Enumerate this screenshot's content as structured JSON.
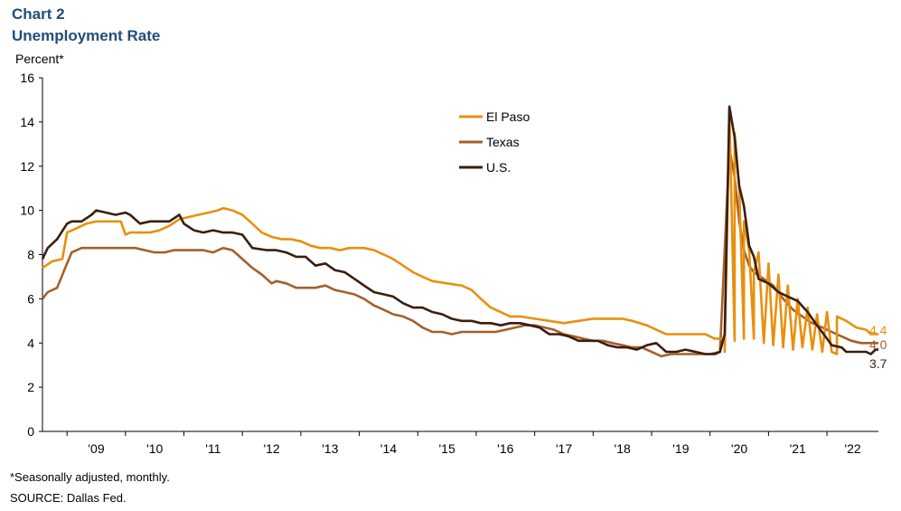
{
  "header": {
    "chart_number": "Chart 2",
    "title": "Unemployment Rate"
  },
  "footer": {
    "note": "*Seasonally adjusted, monthly.",
    "source": "SOURCE: Dallas Fed."
  },
  "colors": {
    "el_paso": "#e8900e",
    "texas": "#a5602a",
    "us": "#3a1e0e",
    "axis": "#000000"
  },
  "chart_data": {
    "type": "line",
    "title": "Unemployment Rate",
    "ylabel": "Percent*",
    "xlabel": "",
    "ylim": [
      0,
      16
    ],
    "yticks": [
      0,
      2,
      4,
      6,
      8,
      10,
      12,
      14,
      16
    ],
    "xlim": [
      2008.58,
      2022.88
    ],
    "year_ticks": [
      {
        "label": "'09",
        "year": 2009
      },
      {
        "label": "'10",
        "year": 2010
      },
      {
        "label": "'11",
        "year": 2011
      },
      {
        "label": "'12",
        "year": 2012
      },
      {
        "label": "'13",
        "year": 2013
      },
      {
        "label": "'14",
        "year": 2014
      },
      {
        "label": "'15",
        "year": 2015
      },
      {
        "label": "'16",
        "year": 2016
      },
      {
        "label": "'17",
        "year": 2017
      },
      {
        "label": "'18",
        "year": 2018
      },
      {
        "label": "'19",
        "year": 2019
      },
      {
        "label": "'20",
        "year": 2020
      },
      {
        "label": "'21",
        "year": 2021
      },
      {
        "label": "'22",
        "year": 2022
      }
    ],
    "legend_position": "top-center",
    "series": [
      {
        "name": "El Paso",
        "end_label": "4.4",
        "points": [
          [
            2008.58,
            7.4
          ],
          [
            2008.75,
            7.7
          ],
          [
            2008.92,
            7.8
          ],
          [
            2009.0,
            9.0
          ],
          [
            2009.17,
            9.2
          ],
          [
            2009.33,
            9.4
          ],
          [
            2009.5,
            9.5
          ],
          [
            2009.75,
            9.5
          ],
          [
            2009.92,
            9.5
          ],
          [
            2010.0,
            8.9
          ],
          [
            2010.08,
            9.0
          ],
          [
            2010.42,
            9.0
          ],
          [
            2010.58,
            9.1
          ],
          [
            2010.75,
            9.3
          ],
          [
            2010.92,
            9.6
          ],
          [
            2011.08,
            9.7
          ],
          [
            2011.25,
            9.8
          ],
          [
            2011.42,
            9.9
          ],
          [
            2011.58,
            10.0
          ],
          [
            2011.67,
            10.1
          ],
          [
            2011.83,
            10.0
          ],
          [
            2012.0,
            9.8
          ],
          [
            2012.17,
            9.4
          ],
          [
            2012.33,
            9.0
          ],
          [
            2012.5,
            8.8
          ],
          [
            2012.67,
            8.7
          ],
          [
            2012.83,
            8.7
          ],
          [
            2013.0,
            8.6
          ],
          [
            2013.17,
            8.4
          ],
          [
            2013.33,
            8.3
          ],
          [
            2013.5,
            8.3
          ],
          [
            2013.67,
            8.2
          ],
          [
            2013.83,
            8.3
          ],
          [
            2014.08,
            8.3
          ],
          [
            2014.25,
            8.2
          ],
          [
            2014.42,
            8.0
          ],
          [
            2014.58,
            7.8
          ],
          [
            2014.75,
            7.5
          ],
          [
            2014.92,
            7.2
          ],
          [
            2015.08,
            7.0
          ],
          [
            2015.25,
            6.8
          ],
          [
            2015.5,
            6.7
          ],
          [
            2015.75,
            6.6
          ],
          [
            2015.92,
            6.4
          ],
          [
            2016.08,
            6.0
          ],
          [
            2016.25,
            5.6
          ],
          [
            2016.42,
            5.4
          ],
          [
            2016.58,
            5.2
          ],
          [
            2016.75,
            5.2
          ],
          [
            2017.0,
            5.1
          ],
          [
            2017.25,
            5.0
          ],
          [
            2017.5,
            4.9
          ],
          [
            2017.75,
            5.0
          ],
          [
            2018.0,
            5.1
          ],
          [
            2018.25,
            5.1
          ],
          [
            2018.5,
            5.1
          ],
          [
            2018.67,
            5.0
          ],
          [
            2018.92,
            4.8
          ],
          [
            2019.08,
            4.6
          ],
          [
            2019.25,
            4.4
          ],
          [
            2019.42,
            4.4
          ],
          [
            2019.58,
            4.4
          ],
          [
            2019.75,
            4.4
          ],
          [
            2019.92,
            4.4
          ],
          [
            2020.08,
            4.2
          ],
          [
            2020.25,
            4.2
          ],
          [
            2020.42,
            4.1
          ],
          [
            2020.58,
            4.2
          ],
          [
            2020.75,
            4.2
          ],
          [
            2020.92,
            4.0
          ],
          [
            2021.08,
            3.9
          ],
          [
            2021.25,
            3.8
          ],
          [
            2021.42,
            3.7
          ],
          [
            2021.58,
            3.8
          ],
          [
            2021.75,
            3.7
          ],
          [
            2021.92,
            3.6
          ],
          [
            2022.08,
            3.6
          ],
          [
            2022.17,
            3.5
          ],
          [
            2020.25,
            3.6
          ],
          [
            2020.33,
            14.5
          ],
          [
            2020.42,
            13.5
          ],
          [
            2020.5,
            11.0
          ],
          [
            2020.58,
            9.5
          ],
          [
            2020.67,
            8.2
          ],
          [
            2020.75,
            7.2
          ],
          [
            2020.83,
            8.1
          ],
          [
            2021.0,
            7.6
          ],
          [
            2021.17,
            7.1
          ],
          [
            2021.33,
            6.6
          ],
          [
            2021.5,
            6.0
          ],
          [
            2021.67,
            5.6
          ],
          [
            2021.83,
            5.3
          ],
          [
            2022.0,
            5.4
          ],
          [
            2022.17,
            5.2
          ],
          [
            2022.33,
            5.0
          ],
          [
            2022.5,
            4.7
          ],
          [
            2022.67,
            4.6
          ],
          [
            2022.75,
            4.4
          ],
          [
            2022.88,
            4.4
          ]
        ]
      },
      {
        "name": "Texas",
        "end_label": "4.0",
        "points": [
          [
            2008.58,
            6.0
          ],
          [
            2008.67,
            6.3
          ],
          [
            2008.83,
            6.5
          ],
          [
            2009.0,
            7.6
          ],
          [
            2009.08,
            8.1
          ],
          [
            2009.25,
            8.3
          ],
          [
            2009.5,
            8.3
          ],
          [
            2009.75,
            8.3
          ],
          [
            2010.0,
            8.3
          ],
          [
            2010.17,
            8.3
          ],
          [
            2010.33,
            8.2
          ],
          [
            2010.5,
            8.1
          ],
          [
            2010.67,
            8.1
          ],
          [
            2010.83,
            8.2
          ],
          [
            2011.0,
            8.2
          ],
          [
            2011.17,
            8.2
          ],
          [
            2011.33,
            8.2
          ],
          [
            2011.5,
            8.1
          ],
          [
            2011.67,
            8.3
          ],
          [
            2011.83,
            8.2
          ],
          [
            2012.0,
            7.8
          ],
          [
            2012.17,
            7.4
          ],
          [
            2012.33,
            7.1
          ],
          [
            2012.5,
            6.7
          ],
          [
            2012.58,
            6.8
          ],
          [
            2012.75,
            6.7
          ],
          [
            2012.92,
            6.5
          ],
          [
            2013.08,
            6.5
          ],
          [
            2013.25,
            6.5
          ],
          [
            2013.42,
            6.6
          ],
          [
            2013.58,
            6.4
          ],
          [
            2013.75,
            6.3
          ],
          [
            2013.92,
            6.2
          ],
          [
            2014.08,
            6.0
          ],
          [
            2014.25,
            5.7
          ],
          [
            2014.42,
            5.5
          ],
          [
            2014.58,
            5.3
          ],
          [
            2014.75,
            5.2
          ],
          [
            2014.92,
            5.0
          ],
          [
            2015.08,
            4.7
          ],
          [
            2015.25,
            4.5
          ],
          [
            2015.42,
            4.5
          ],
          [
            2015.58,
            4.4
          ],
          [
            2015.75,
            4.5
          ],
          [
            2015.92,
            4.5
          ],
          [
            2016.17,
            4.5
          ],
          [
            2016.33,
            4.5
          ],
          [
            2016.5,
            4.6
          ],
          [
            2016.67,
            4.7
          ],
          [
            2016.83,
            4.8
          ],
          [
            2017.0,
            4.8
          ],
          [
            2017.17,
            4.7
          ],
          [
            2017.33,
            4.6
          ],
          [
            2017.5,
            4.4
          ],
          [
            2017.67,
            4.3
          ],
          [
            2017.83,
            4.2
          ],
          [
            2018.0,
            4.1
          ],
          [
            2018.17,
            4.1
          ],
          [
            2018.33,
            4.0
          ],
          [
            2018.5,
            3.9
          ],
          [
            2018.67,
            3.8
          ],
          [
            2018.83,
            3.8
          ],
          [
            2019.0,
            3.6
          ],
          [
            2019.17,
            3.4
          ],
          [
            2019.33,
            3.5
          ],
          [
            2019.5,
            3.5
          ],
          [
            2019.67,
            3.5
          ],
          [
            2019.83,
            3.5
          ],
          [
            2020.0,
            3.5
          ],
          [
            2020.17,
            3.6
          ],
          [
            2020.33,
            12.8
          ],
          [
            2020.42,
            11.5
          ],
          [
            2020.5,
            9.5
          ],
          [
            2020.58,
            8.2
          ],
          [
            2020.67,
            7.5
          ],
          [
            2020.75,
            7.2
          ],
          [
            2020.92,
            6.9
          ],
          [
            2021.08,
            6.6
          ],
          [
            2021.25,
            6.0
          ],
          [
            2021.42,
            5.5
          ],
          [
            2021.58,
            5.2
          ],
          [
            2021.75,
            4.9
          ],
          [
            2021.92,
            4.7
          ],
          [
            2022.08,
            4.5
          ],
          [
            2022.25,
            4.3
          ],
          [
            2022.42,
            4.1
          ],
          [
            2022.58,
            4.0
          ],
          [
            2022.75,
            4.0
          ],
          [
            2022.88,
            4.0
          ]
        ]
      },
      {
        "name": "U.S.",
        "end_label": "3.7",
        "points": [
          [
            2008.58,
            7.8
          ],
          [
            2008.67,
            8.3
          ],
          [
            2008.83,
            8.7
          ],
          [
            2009.0,
            9.4
          ],
          [
            2009.08,
            9.5
          ],
          [
            2009.25,
            9.5
          ],
          [
            2009.42,
            9.8
          ],
          [
            2009.5,
            10.0
          ],
          [
            2009.67,
            9.9
          ],
          [
            2009.83,
            9.8
          ],
          [
            2010.0,
            9.9
          ],
          [
            2010.08,
            9.8
          ],
          [
            2010.25,
            9.4
          ],
          [
            2010.42,
            9.5
          ],
          [
            2010.58,
            9.5
          ],
          [
            2010.75,
            9.5
          ],
          [
            2010.92,
            9.8
          ],
          [
            2011.0,
            9.4
          ],
          [
            2011.17,
            9.1
          ],
          [
            2011.33,
            9.0
          ],
          [
            2011.5,
            9.1
          ],
          [
            2011.67,
            9.0
          ],
          [
            2011.83,
            9.0
          ],
          [
            2012.0,
            8.9
          ],
          [
            2012.17,
            8.3
          ],
          [
            2012.42,
            8.2
          ],
          [
            2012.58,
            8.2
          ],
          [
            2012.75,
            8.1
          ],
          [
            2012.92,
            7.9
          ],
          [
            2013.08,
            7.9
          ],
          [
            2013.25,
            7.5
          ],
          [
            2013.42,
            7.6
          ],
          [
            2013.58,
            7.3
          ],
          [
            2013.75,
            7.2
          ],
          [
            2013.92,
            6.9
          ],
          [
            2014.08,
            6.6
          ],
          [
            2014.25,
            6.3
          ],
          [
            2014.42,
            6.2
          ],
          [
            2014.58,
            6.1
          ],
          [
            2014.75,
            5.8
          ],
          [
            2014.92,
            5.6
          ],
          [
            2015.08,
            5.6
          ],
          [
            2015.25,
            5.4
          ],
          [
            2015.42,
            5.3
          ],
          [
            2015.58,
            5.1
          ],
          [
            2015.75,
            5.0
          ],
          [
            2015.92,
            5.0
          ],
          [
            2016.08,
            4.9
          ],
          [
            2016.25,
            4.9
          ],
          [
            2016.42,
            4.8
          ],
          [
            2016.58,
            4.9
          ],
          [
            2016.75,
            4.9
          ],
          [
            2016.92,
            4.8
          ],
          [
            2017.08,
            4.7
          ],
          [
            2017.25,
            4.4
          ],
          [
            2017.42,
            4.4
          ],
          [
            2017.58,
            4.3
          ],
          [
            2017.75,
            4.1
          ],
          [
            2017.92,
            4.1
          ],
          [
            2018.08,
            4.1
          ],
          [
            2018.25,
            3.9
          ],
          [
            2018.42,
            3.8
          ],
          [
            2018.58,
            3.8
          ],
          [
            2018.75,
            3.7
          ],
          [
            2018.92,
            3.9
          ],
          [
            2019.08,
            4.0
          ],
          [
            2019.25,
            3.6
          ],
          [
            2019.42,
            3.6
          ],
          [
            2019.58,
            3.7
          ],
          [
            2019.75,
            3.6
          ],
          [
            2019.92,
            3.5
          ],
          [
            2020.0,
            3.5
          ],
          [
            2020.08,
            3.5
          ],
          [
            2020.17,
            3.6
          ],
          [
            2020.25,
            4.4
          ],
          [
            2020.33,
            14.7
          ],
          [
            2020.42,
            13.3
          ],
          [
            2020.5,
            11.1
          ],
          [
            2020.58,
            10.2
          ],
          [
            2020.67,
            8.4
          ],
          [
            2020.75,
            7.9
          ],
          [
            2020.83,
            6.9
          ],
          [
            2021.0,
            6.7
          ],
          [
            2021.17,
            6.3
          ],
          [
            2021.33,
            6.1
          ],
          [
            2021.5,
            5.9
          ],
          [
            2021.67,
            5.4
          ],
          [
            2021.83,
            4.8
          ],
          [
            2022.0,
            4.2
          ],
          [
            2022.08,
            3.9
          ],
          [
            2022.25,
            3.8
          ],
          [
            2022.33,
            3.6
          ],
          [
            2022.5,
            3.6
          ],
          [
            2022.67,
            3.6
          ],
          [
            2022.75,
            3.5
          ],
          [
            2022.83,
            3.7
          ],
          [
            2022.88,
            3.7
          ]
        ]
      }
    ]
  }
}
